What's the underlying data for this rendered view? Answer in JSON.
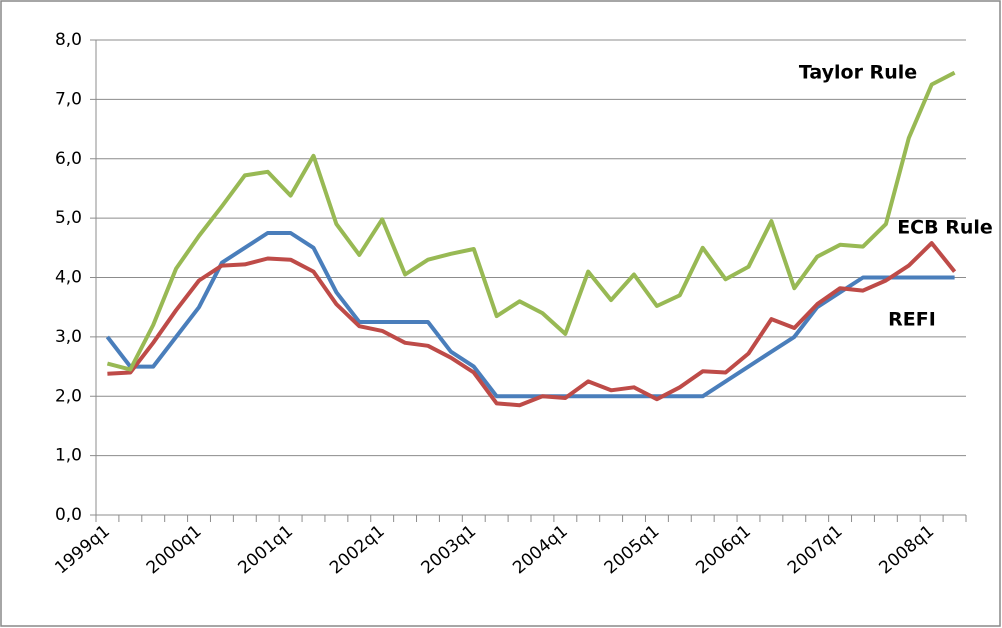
{
  "chart_data": {
    "type": "line",
    "categories": [
      "1999q1",
      null,
      null,
      null,
      "2000q1",
      null,
      null,
      null,
      "2001q1",
      null,
      null,
      null,
      "2002q1",
      null,
      null,
      null,
      "2003q1",
      null,
      null,
      null,
      "2004q1",
      null,
      null,
      null,
      "2005q1",
      null,
      null,
      null,
      "2006q1",
      null,
      null,
      null,
      "2007q1",
      null,
      null,
      null,
      "2008q1",
      null
    ],
    "series": [
      {
        "name": "REFI",
        "color": "#4a7ebb",
        "values": [
          3.0,
          2.5,
          2.5,
          3.0,
          3.5,
          4.25,
          4.5,
          4.75,
          4.75,
          4.5,
          3.75,
          3.25,
          3.25,
          3.25,
          3.25,
          2.75,
          2.5,
          2.0,
          2.0,
          2.0,
          2.0,
          2.0,
          2.0,
          2.0,
          2.0,
          2.0,
          2.0,
          2.25,
          2.5,
          2.75,
          3.0,
          3.5,
          3.75,
          4.0,
          4.0,
          4.0,
          4.0,
          4.0
        ]
      },
      {
        "name": "ECB Rule",
        "color": "#be4b48",
        "values": [
          2.38,
          2.4,
          2.9,
          3.45,
          3.95,
          4.2,
          4.22,
          4.32,
          4.3,
          4.1,
          3.55,
          3.18,
          3.1,
          2.9,
          2.85,
          2.65,
          2.4,
          1.88,
          1.85,
          2.0,
          1.97,
          2.25,
          2.1,
          2.15,
          1.95,
          2.15,
          2.42,
          2.4,
          2.72,
          3.3,
          3.15,
          3.55,
          3.82,
          3.78,
          3.95,
          4.2,
          4.58,
          4.1
        ]
      },
      {
        "name": "Taylor Rule",
        "color": "#98b954",
        "values": [
          2.55,
          2.45,
          3.2,
          4.15,
          4.7,
          5.2,
          5.72,
          5.78,
          5.38,
          6.05,
          4.9,
          4.38,
          4.98,
          4.05,
          4.3,
          4.4,
          4.48,
          3.35,
          3.6,
          3.4,
          3.05,
          4.1,
          3.62,
          4.05,
          3.52,
          3.7,
          4.5,
          3.97,
          4.18,
          4.95,
          3.82,
          4.35,
          4.55,
          4.52,
          4.9,
          6.35,
          7.25,
          7.45
        ]
      }
    ],
    "ylim": [
      0,
      8
    ],
    "yticks": [
      {
        "value": 0,
        "label": "0,0"
      },
      {
        "value": 1,
        "label": "1,0"
      },
      {
        "value": 2,
        "label": "2,0"
      },
      {
        "value": 3,
        "label": "3,0"
      },
      {
        "value": 4,
        "label": "4,0"
      },
      {
        "value": 5,
        "label": "5,0"
      },
      {
        "value": 6,
        "label": "6,0"
      },
      {
        "value": 7,
        "label": "7,0"
      },
      {
        "value": 8,
        "label": "8,0"
      }
    ],
    "grid": true
  }
}
